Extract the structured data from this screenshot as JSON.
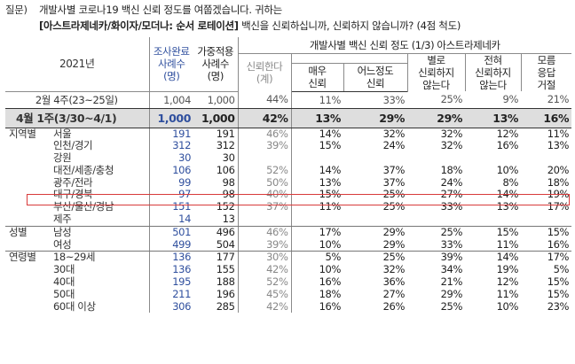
{
  "question": {
    "label": "질문)",
    "line1": "개발사별 코로나19 백신 신뢰 정도를 여쭙겠습니다. 귀하는",
    "line2_bold": "[아스트라제네카/화이자/모더나: 순서 로테이션]",
    "line2_rest": " 백신을 신뢰하십니까, 신뢰하지 않습니까? (4점 척도)"
  },
  "header": {
    "year": "2021년",
    "survey_count": [
      "조사완료",
      "사례수",
      "(명)"
    ],
    "weighted_count": [
      "가중적용",
      "사례수",
      "(명)"
    ],
    "group_title": "개발사별 백신 신뢰 정도 (1/3) 아스트라제네카",
    "trust": [
      "신뢰한다",
      "(계)"
    ],
    "very_trust": [
      "매우",
      "신뢰"
    ],
    "somewhat_trust": [
      "어느정도",
      "신뢰"
    ],
    "not_much_trust": [
      "별로",
      "신뢰하지",
      "않는다"
    ],
    "not_at_all_trust": [
      "전혀",
      "신뢰하지",
      "않는다"
    ],
    "dont_know": [
      "모름",
      "응답",
      "거절"
    ]
  },
  "previous": {
    "label": "2월 4주(23~25일)",
    "cells": [
      "1,004",
      "1,000",
      "44%",
      "11%",
      "33%",
      "25%",
      "9%",
      "21%"
    ]
  },
  "total": {
    "label": "4월 1주(3/30~4/1)",
    "cells": [
      "1,000",
      "1,000",
      "42%",
      "13%",
      "29%",
      "29%",
      "13%",
      "16%"
    ]
  },
  "sections": [
    {
      "name": "지역별",
      "rows": [
        {
          "label": "서울",
          "cells": [
            "191",
            "191",
            "46%",
            "14%",
            "32%",
            "32%",
            "12%",
            "11%"
          ]
        },
        {
          "label": "인천/경기",
          "cells": [
            "312",
            "312",
            "39%",
            "15%",
            "24%",
            "32%",
            "16%",
            "13%"
          ]
        },
        {
          "label": "강원",
          "cells": [
            "30",
            "30",
            "",
            "",
            "",
            "",
            "",
            ""
          ]
        },
        {
          "label": "대전/세종/충청",
          "cells": [
            "106",
            "106",
            "52%",
            "14%",
            "37%",
            "18%",
            "10%",
            "20%"
          ]
        },
        {
          "label": "광주/전라",
          "cells": [
            "99",
            "98",
            "50%",
            "13%",
            "37%",
            "24%",
            "8%",
            "18%"
          ]
        },
        {
          "label": "대구/경북",
          "cells": [
            "97",
            "98",
            "40%",
            "15%",
            "25%",
            "27%",
            "14%",
            "19%"
          ]
        },
        {
          "label": "부산/울산/경남",
          "cells": [
            "151",
            "152",
            "37%",
            "11%",
            "25%",
            "33%",
            "13%",
            "17%"
          ]
        },
        {
          "label": "제주",
          "cells": [
            "14",
            "13",
            "",
            "",
            "",
            "",
            "",
            ""
          ]
        }
      ]
    },
    {
      "name": "성별",
      "rows": [
        {
          "label": "남성",
          "cells": [
            "501",
            "496",
            "46%",
            "17%",
            "29%",
            "25%",
            "15%",
            "15%"
          ]
        },
        {
          "label": "여성",
          "cells": [
            "499",
            "504",
            "39%",
            "10%",
            "29%",
            "33%",
            "11%",
            "16%"
          ]
        }
      ]
    },
    {
      "name": "연령별",
      "rows": [
        {
          "label": "18~29세",
          "cells": [
            "136",
            "177",
            "30%",
            "5%",
            "25%",
            "39%",
            "14%",
            "17%"
          ]
        },
        {
          "label": "30대",
          "cells": [
            "136",
            "155",
            "42%",
            "10%",
            "32%",
            "34%",
            "19%",
            "5%"
          ]
        },
        {
          "label": "40대",
          "cells": [
            "195",
            "188",
            "52%",
            "16%",
            "36%",
            "21%",
            "12%",
            "15%"
          ]
        },
        {
          "label": "50대",
          "cells": [
            "211",
            "196",
            "45%",
            "18%",
            "27%",
            "29%",
            "11%",
            "15%"
          ]
        },
        {
          "label": "60대 이상",
          "cells": [
            "306",
            "285",
            "42%",
            "16%",
            "26%",
            "25%",
            "10%",
            "23%"
          ]
        }
      ]
    }
  ]
}
